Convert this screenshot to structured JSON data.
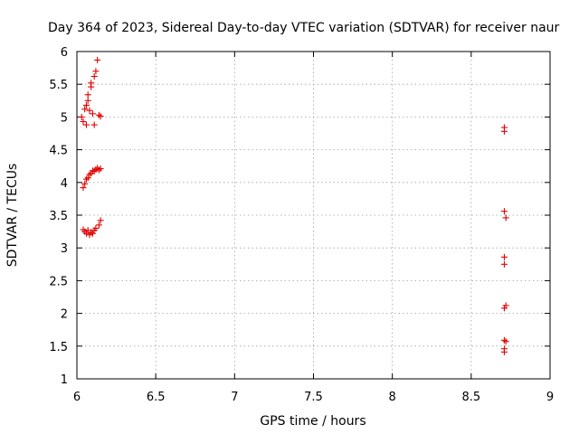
{
  "chart_data": {
    "type": "scatter",
    "title": "Day 364 of 2023, Sidereal Day-to-day VTEC variation (SDTVAR) for receiver naur",
    "xlabel": "GPS time / hours",
    "ylabel": "SDTVAR / TECUs",
    "xlim": [
      6,
      9
    ],
    "ylim": [
      1,
      6
    ],
    "xticks": [
      6,
      6.5,
      7,
      7.5,
      8,
      8.5,
      9
    ],
    "xtick_labels": [
      "6",
      "6.5",
      "7",
      "7.5",
      "8",
      "8.5",
      "9"
    ],
    "yticks": [
      1,
      1.5,
      2,
      2.5,
      3,
      3.5,
      4,
      4.5,
      5,
      5.5,
      6
    ],
    "ytick_labels": [
      "1",
      "1.5",
      "2",
      "2.5",
      "3",
      "3.5",
      "4",
      "4.5",
      "5",
      "5.5",
      "6"
    ],
    "grid": true,
    "marker": "+",
    "marker_color": "#e00000",
    "series": [
      {
        "name": "SDTVAR",
        "points": [
          [
            6.03,
            5.0
          ],
          [
            6.04,
            4.93
          ],
          [
            6.05,
            5.12
          ],
          [
            6.06,
            5.18
          ],
          [
            6.06,
            4.88
          ],
          [
            6.07,
            5.25
          ],
          [
            6.07,
            5.34
          ],
          [
            6.08,
            5.1
          ],
          [
            6.09,
            5.46
          ],
          [
            6.09,
            5.52
          ],
          [
            6.1,
            5.05
          ],
          [
            6.11,
            5.62
          ],
          [
            6.12,
            5.7
          ],
          [
            6.13,
            5.87
          ],
          [
            6.11,
            4.88
          ],
          [
            6.14,
            5.03
          ],
          [
            6.15,
            5.01
          ],
          [
            6.04,
            3.92
          ],
          [
            6.05,
            3.98
          ],
          [
            6.06,
            4.05
          ],
          [
            6.07,
            4.07
          ],
          [
            6.08,
            4.12
          ],
          [
            6.09,
            4.14
          ],
          [
            6.1,
            4.18
          ],
          [
            6.11,
            4.17
          ],
          [
            6.12,
            4.2
          ],
          [
            6.13,
            4.22
          ],
          [
            6.14,
            4.19
          ],
          [
            6.15,
            4.21
          ],
          [
            6.04,
            3.28
          ],
          [
            6.05,
            3.25
          ],
          [
            6.06,
            3.22
          ],
          [
            6.07,
            3.27
          ],
          [
            6.08,
            3.2
          ],
          [
            6.09,
            3.24
          ],
          [
            6.1,
            3.22
          ],
          [
            6.11,
            3.27
          ],
          [
            6.12,
            3.3
          ],
          [
            6.14,
            3.35
          ],
          [
            6.15,
            3.42
          ],
          [
            8.71,
            4.84
          ],
          [
            8.71,
            4.78
          ],
          [
            8.71,
            3.56
          ],
          [
            8.72,
            3.46
          ],
          [
            8.71,
            2.86
          ],
          [
            8.71,
            2.75
          ],
          [
            8.72,
            2.12
          ],
          [
            8.71,
            2.08
          ],
          [
            8.71,
            1.59
          ],
          [
            8.72,
            1.57
          ],
          [
            8.71,
            1.46
          ],
          [
            8.71,
            1.41
          ]
        ]
      }
    ]
  }
}
